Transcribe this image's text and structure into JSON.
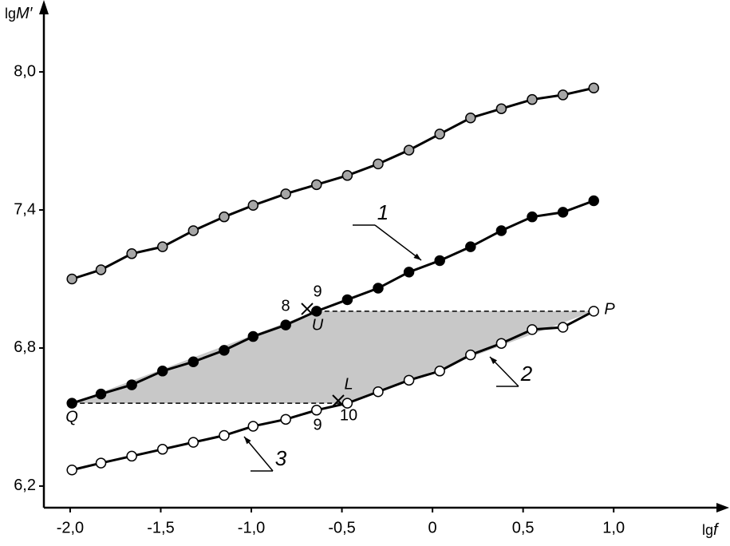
{
  "chart_data": {
    "type": "line",
    "xlabel": [
      "lg",
      "f"
    ],
    "ylabel": [
      "lg",
      "M′"
    ],
    "xlim": [
      -2.145,
      1.62
    ],
    "ylim": [
      6.106,
      8.264
    ],
    "xticks": [
      {
        "value": -2.0,
        "label": "-2,0"
      },
      {
        "value": -1.5,
        "label": "-1,5"
      },
      {
        "value": -1.0,
        "label": "-1,0"
      },
      {
        "value": -0.5,
        "label": "-0,5"
      },
      0,
      {
        "value": 0.5,
        "label": "0,5"
      },
      {
        "value": 1.0,
        "label": "1,0"
      }
    ],
    "yticks": [
      {
        "value": 6.2,
        "label": "6,2"
      },
      {
        "value": 6.8,
        "label": "6,8"
      },
      {
        "value": 7.4,
        "label": "7,4"
      },
      {
        "value": 8.0,
        "label": "8,0"
      }
    ],
    "grid": false,
    "x": [
      -1.99,
      -1.83,
      -1.66,
      -1.49,
      -1.32,
      -1.15,
      -0.99,
      -0.81,
      -0.64,
      -0.47,
      -0.3,
      -0.13,
      0.04,
      0.21,
      0.38,
      0.55,
      0.72,
      0.89
    ],
    "series": [
      {
        "color": "#a6a6a6",
        "values": [
          7.1,
          7.14,
          7.21,
          7.24,
          7.31,
          7.37,
          7.42,
          7.47,
          7.51,
          7.55,
          7.6,
          7.66,
          7.73,
          7.8,
          7.84,
          7.88,
          7.9,
          7.93
        ]
      },
      {
        "color": "#000000",
        "values": [
          6.56,
          6.6,
          6.64,
          6.7,
          6.74,
          6.79,
          6.85,
          6.9,
          6.96,
          7.01,
          7.06,
          7.13,
          7.18,
          7.24,
          7.31,
          7.37,
          7.39,
          7.44
        ]
      },
      {
        "color": "#ffffff",
        "values": [
          6.27,
          6.3,
          6.33,
          6.36,
          6.39,
          6.42,
          6.46,
          6.49,
          6.53,
          6.56,
          6.61,
          6.66,
          6.7,
          6.77,
          6.82,
          6.88,
          6.89,
          6.96
        ]
      }
    ],
    "annotations": [
      "1",
      "2",
      "3",
      "8",
      "9",
      "9",
      "10",
      "Q",
      "U",
      "P",
      "L"
    ]
  }
}
